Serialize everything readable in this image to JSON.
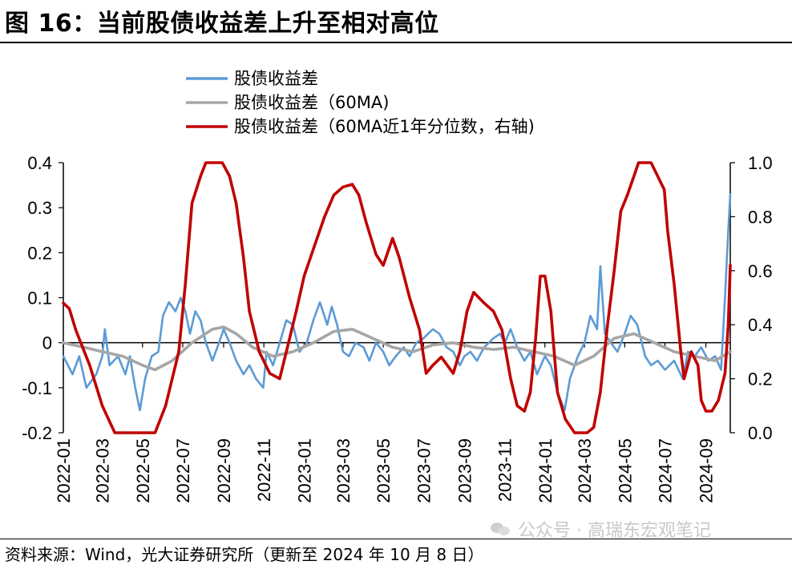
{
  "title": "图 16：当前股债收益差上升至相对高位",
  "source": "资料来源：Wind，光大证券研究所（更新至 2024 年 10 月 8 日）",
  "watermark": {
    "icon": "wechat-icon",
    "text": "公众号 · 高瑞东宏观笔记"
  },
  "colors": {
    "spread": "#5b9bd5",
    "ma60": "#a6a6a6",
    "percentile": "#c00000"
  },
  "chart_data": {
    "type": "line",
    "legend": [
      "股债收益差",
      "股债收益差（60MA)",
      "股债收益差（60MA近1年分位数，右轴)"
    ],
    "legend_position": "top-center",
    "grid": false,
    "x_ticks": [
      "2022-01",
      "2022-03",
      "2022-05",
      "2022-07",
      "2022-09",
      "2022-11",
      "2023-01",
      "2023-03",
      "2023-05",
      "2023-07",
      "2023-09",
      "2023-11",
      "2024-01",
      "2024-03",
      "2024-05",
      "2024-07",
      "2024-09"
    ],
    "y_left": {
      "ylim": [
        -0.2,
        0.4
      ],
      "ticks": [
        "-0.2",
        "-0.1",
        "0",
        "0.1",
        "0.2",
        "0.3",
        "0.4"
      ]
    },
    "y_right": {
      "ylim": [
        0.0,
        1.0
      ],
      "ticks": [
        "0.0",
        "0.2",
        "0.4",
        "0.6",
        "0.8",
        "1.0"
      ]
    },
    "series": [
      {
        "name": "股债收益差",
        "axis": "left",
        "points": [
          [
            "2022-01-01",
            -0.03
          ],
          [
            "2022-01-15",
            -0.07
          ],
          [
            "2022-01-25",
            -0.03
          ],
          [
            "2022-02-05",
            -0.1
          ],
          [
            "2022-02-20",
            -0.07
          ],
          [
            "2022-03-01",
            -0.03
          ],
          [
            "2022-03-05",
            0.03
          ],
          [
            "2022-03-12",
            -0.05
          ],
          [
            "2022-03-25",
            -0.03
          ],
          [
            "2022-04-05",
            -0.07
          ],
          [
            "2022-04-12",
            -0.03
          ],
          [
            "2022-04-20",
            -0.1
          ],
          [
            "2022-04-27",
            -0.15
          ],
          [
            "2022-05-05",
            -0.08
          ],
          [
            "2022-05-15",
            -0.03
          ],
          [
            "2022-05-25",
            -0.02
          ],
          [
            "2022-06-01",
            0.06
          ],
          [
            "2022-06-10",
            0.09
          ],
          [
            "2022-06-20",
            0.07
          ],
          [
            "2022-06-28",
            0.1
          ],
          [
            "2022-07-05",
            0.07
          ],
          [
            "2022-07-12",
            0.02
          ],
          [
            "2022-07-20",
            0.07
          ],
          [
            "2022-07-28",
            0.05
          ],
          [
            "2022-08-05",
            0.0
          ],
          [
            "2022-08-15",
            -0.04
          ],
          [
            "2022-08-25",
            0.0
          ],
          [
            "2022-09-01",
            0.03
          ],
          [
            "2022-09-10",
            0.0
          ],
          [
            "2022-09-20",
            -0.04
          ],
          [
            "2022-10-01",
            -0.07
          ],
          [
            "2022-10-10",
            -0.05
          ],
          [
            "2022-10-20",
            -0.08
          ],
          [
            "2022-10-31",
            -0.1
          ],
          [
            "2022-11-05",
            -0.02
          ],
          [
            "2022-11-15",
            -0.05
          ],
          [
            "2022-11-25",
            0.0
          ],
          [
            "2022-12-05",
            0.05
          ],
          [
            "2022-12-15",
            0.04
          ],
          [
            "2022-12-25",
            -0.02
          ],
          [
            "2023-01-05",
            0.0
          ],
          [
            "2023-01-15",
            0.05
          ],
          [
            "2023-01-25",
            0.09
          ],
          [
            "2023-02-05",
            0.04
          ],
          [
            "2023-02-12",
            0.08
          ],
          [
            "2023-02-20",
            0.04
          ],
          [
            "2023-03-01",
            -0.02
          ],
          [
            "2023-03-10",
            -0.03
          ],
          [
            "2023-03-20",
            0.0
          ],
          [
            "2023-04-01",
            -0.01
          ],
          [
            "2023-04-10",
            -0.04
          ],
          [
            "2023-04-20",
            0.0
          ],
          [
            "2023-05-01",
            -0.02
          ],
          [
            "2023-05-10",
            -0.05
          ],
          [
            "2023-05-20",
            -0.03
          ],
          [
            "2023-06-01",
            -0.01
          ],
          [
            "2023-06-10",
            -0.03
          ],
          [
            "2023-06-20",
            0.0
          ],
          [
            "2023-07-01",
            0.01
          ],
          [
            "2023-07-15",
            0.03
          ],
          [
            "2023-07-25",
            0.02
          ],
          [
            "2023-08-05",
            -0.01
          ],
          [
            "2023-08-15",
            -0.02
          ],
          [
            "2023-08-25",
            -0.05
          ],
          [
            "2023-09-01",
            -0.03
          ],
          [
            "2023-09-10",
            -0.02
          ],
          [
            "2023-09-20",
            -0.04
          ],
          [
            "2023-10-01",
            -0.01
          ],
          [
            "2023-10-15",
            0.01
          ],
          [
            "2023-10-25",
            0.02
          ],
          [
            "2023-11-01",
            0.0
          ],
          [
            "2023-11-10",
            0.03
          ],
          [
            "2023-11-20",
            -0.01
          ],
          [
            "2023-12-01",
            -0.04
          ],
          [
            "2023-12-10",
            -0.02
          ],
          [
            "2023-12-20",
            -0.07
          ],
          [
            "2024-01-01",
            -0.03
          ],
          [
            "2024-01-10",
            -0.05
          ],
          [
            "2024-01-20",
            -0.11
          ],
          [
            "2024-01-31",
            -0.15
          ],
          [
            "2024-02-08",
            -0.08
          ],
          [
            "2024-02-20",
            -0.03
          ],
          [
            "2024-03-01",
            0.0
          ],
          [
            "2024-03-10",
            0.06
          ],
          [
            "2024-03-20",
            0.03
          ],
          [
            "2024-03-25",
            0.17
          ],
          [
            "2024-04-01",
            0.02
          ],
          [
            "2024-04-10",
            0.0
          ],
          [
            "2024-04-20",
            -0.02
          ],
          [
            "2024-05-01",
            0.02
          ],
          [
            "2024-05-10",
            0.06
          ],
          [
            "2024-05-20",
            0.04
          ],
          [
            "2024-06-01",
            -0.03
          ],
          [
            "2024-06-10",
            -0.05
          ],
          [
            "2024-06-20",
            -0.04
          ],
          [
            "2024-07-01",
            -0.06
          ],
          [
            "2024-07-15",
            -0.04
          ],
          [
            "2024-07-28",
            -0.08
          ],
          [
            "2024-08-05",
            -0.02
          ],
          [
            "2024-08-15",
            -0.03
          ],
          [
            "2024-08-25",
            -0.01
          ],
          [
            "2024-09-05",
            -0.04
          ],
          [
            "2024-09-15",
            -0.03
          ],
          [
            "2024-09-24",
            -0.06
          ],
          [
            "2024-09-30",
            0.1
          ],
          [
            "2024-10-05",
            0.25
          ],
          [
            "2024-10-08",
            0.33
          ]
        ]
      },
      {
        "name": "股债收益差（60MA)",
        "axis": "left",
        "points": [
          [
            "2022-01-01",
            0.0
          ],
          [
            "2022-02-01",
            -0.01
          ],
          [
            "2022-03-01",
            -0.02
          ],
          [
            "2022-04-01",
            -0.03
          ],
          [
            "2022-05-01",
            -0.05
          ],
          [
            "2022-05-20",
            -0.06
          ],
          [
            "2022-06-15",
            -0.04
          ],
          [
            "2022-07-15",
            0.0
          ],
          [
            "2022-08-15",
            0.03
          ],
          [
            "2022-09-01",
            0.035
          ],
          [
            "2022-09-20",
            0.02
          ],
          [
            "2022-10-15",
            -0.01
          ],
          [
            "2022-11-15",
            -0.03
          ],
          [
            "2022-12-15",
            -0.02
          ],
          [
            "2023-01-15",
            0.0
          ],
          [
            "2023-02-15",
            0.025
          ],
          [
            "2023-03-15",
            0.03
          ],
          [
            "2023-04-15",
            0.01
          ],
          [
            "2023-05-15",
            -0.01
          ],
          [
            "2023-06-15",
            -0.02
          ],
          [
            "2023-07-15",
            -0.005
          ],
          [
            "2023-08-15",
            0.0
          ],
          [
            "2023-09-15",
            -0.01
          ],
          [
            "2023-10-15",
            -0.015
          ],
          [
            "2023-11-15",
            -0.01
          ],
          [
            "2023-12-15",
            -0.02
          ],
          [
            "2024-01-15",
            -0.03
          ],
          [
            "2024-02-15",
            -0.05
          ],
          [
            "2024-03-15",
            -0.03
          ],
          [
            "2024-04-15",
            0.01
          ],
          [
            "2024-05-15",
            0.02
          ],
          [
            "2024-06-15",
            0.0
          ],
          [
            "2024-07-15",
            -0.02
          ],
          [
            "2024-08-15",
            -0.03
          ],
          [
            "2024-09-15",
            -0.04
          ],
          [
            "2024-10-08",
            -0.02
          ]
        ]
      },
      {
        "name": "股债收益差（60MA近1年分位数，右轴)",
        "axis": "right",
        "points": [
          [
            "2022-01-01",
            0.48
          ],
          [
            "2022-01-10",
            0.46
          ],
          [
            "2022-01-20",
            0.38
          ],
          [
            "2022-02-10",
            0.25
          ],
          [
            "2022-03-01",
            0.1
          ],
          [
            "2022-03-20",
            0.0
          ],
          [
            "2022-04-30",
            0.0
          ],
          [
            "2022-05-20",
            0.0
          ],
          [
            "2022-06-05",
            0.1
          ],
          [
            "2022-06-25",
            0.3
          ],
          [
            "2022-07-05",
            0.55
          ],
          [
            "2022-07-15",
            0.85
          ],
          [
            "2022-07-28",
            0.95
          ],
          [
            "2022-08-05",
            1.0
          ],
          [
            "2022-08-30",
            1.0
          ],
          [
            "2022-09-10",
            0.95
          ],
          [
            "2022-09-20",
            0.85
          ],
          [
            "2022-10-01",
            0.65
          ],
          [
            "2022-10-10",
            0.45
          ],
          [
            "2022-10-25",
            0.3
          ],
          [
            "2022-11-10",
            0.22
          ],
          [
            "2022-11-25",
            0.2
          ],
          [
            "2022-12-05",
            0.3
          ],
          [
            "2022-12-20",
            0.45
          ],
          [
            "2023-01-01",
            0.58
          ],
          [
            "2023-01-15",
            0.68
          ],
          [
            "2023-02-01",
            0.8
          ],
          [
            "2023-02-15",
            0.88
          ],
          [
            "2023-03-01",
            0.91
          ],
          [
            "2023-03-15",
            0.92
          ],
          [
            "2023-03-25",
            0.88
          ],
          [
            "2023-04-05",
            0.78
          ],
          [
            "2023-04-20",
            0.66
          ],
          [
            "2023-05-01",
            0.62
          ],
          [
            "2023-05-15",
            0.72
          ],
          [
            "2023-05-25",
            0.65
          ],
          [
            "2023-06-10",
            0.5
          ],
          [
            "2023-06-25",
            0.38
          ],
          [
            "2023-07-05",
            0.22
          ],
          [
            "2023-07-15",
            0.25
          ],
          [
            "2023-07-28",
            0.28
          ],
          [
            "2023-08-15",
            0.22
          ],
          [
            "2023-08-25",
            0.3
          ],
          [
            "2023-09-05",
            0.45
          ],
          [
            "2023-09-15",
            0.52
          ],
          [
            "2023-10-01",
            0.48
          ],
          [
            "2023-10-15",
            0.45
          ],
          [
            "2023-10-28",
            0.38
          ],
          [
            "2023-11-10",
            0.2
          ],
          [
            "2023-11-20",
            0.1
          ],
          [
            "2023-12-01",
            0.08
          ],
          [
            "2023-12-10",
            0.15
          ],
          [
            "2023-12-18",
            0.35
          ],
          [
            "2023-12-25",
            0.58
          ],
          [
            "2024-01-01",
            0.58
          ],
          [
            "2024-01-10",
            0.45
          ],
          [
            "2024-01-20",
            0.15
          ],
          [
            "2024-02-01",
            0.05
          ],
          [
            "2024-02-15",
            0.0
          ],
          [
            "2024-03-05",
            0.0
          ],
          [
            "2024-03-15",
            0.02
          ],
          [
            "2024-03-25",
            0.15
          ],
          [
            "2024-04-05",
            0.4
          ],
          [
            "2024-04-15",
            0.6
          ],
          [
            "2024-04-25",
            0.82
          ],
          [
            "2024-05-05",
            0.88
          ],
          [
            "2024-05-15",
            0.95
          ],
          [
            "2024-05-22",
            1.0
          ],
          [
            "2024-06-10",
            1.0
          ],
          [
            "2024-06-20",
            0.95
          ],
          [
            "2024-06-30",
            0.9
          ],
          [
            "2024-07-05",
            0.75
          ],
          [
            "2024-07-15",
            0.55
          ],
          [
            "2024-07-25",
            0.3
          ],
          [
            "2024-07-30",
            0.2
          ],
          [
            "2024-08-10",
            0.3
          ],
          [
            "2024-08-20",
            0.25
          ],
          [
            "2024-08-25",
            0.12
          ],
          [
            "2024-09-01",
            0.08
          ],
          [
            "2024-09-10",
            0.08
          ],
          [
            "2024-09-20",
            0.12
          ],
          [
            "2024-09-26",
            0.18
          ],
          [
            "2024-09-30",
            0.22
          ],
          [
            "2024-10-05",
            0.4
          ],
          [
            "2024-10-08",
            0.62
          ]
        ]
      }
    ]
  }
}
